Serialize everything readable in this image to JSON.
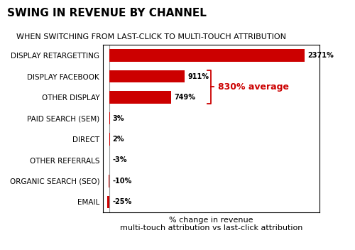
{
  "chart_data": {
    "type": "bar",
    "orientation": "horizontal",
    "title": "SWING IN REVENUE BY CHANNEL",
    "subtitle": "WHEN SWITCHING FROM LAST-CLICK TO MULTI-TOUCH ATTRIBUTION",
    "categories": [
      "DISPLAY RETARGETTING",
      "DISPLAY FACEBOOK",
      "OTHER DISPLAY",
      "PAID SEARCH (SEM)",
      "DIRECT",
      "OTHER REFERRALS",
      "ORGANIC SEARCH (SEO)",
      "EMAIL"
    ],
    "values": [
      2371,
      911,
      749,
      3,
      2,
      -3,
      -10,
      -25
    ],
    "value_labels": [
      "2371%",
      "911%",
      "749%",
      "3%",
      "2%",
      "-3%",
      "-10%",
      "-25%"
    ],
    "data_labels": true,
    "color": "#cc0000",
    "xlabel": "% change in revenue\nmulti-touch attribution vs last-click attribution",
    "xlim": [
      -80,
      2550
    ],
    "tick_labels": "y",
    "grid": false,
    "annotations": [
      {
        "text": "830% average",
        "categories": [
          "DISPLAY FACEBOOK",
          "OTHER DISPLAY"
        ]
      }
    ]
  }
}
